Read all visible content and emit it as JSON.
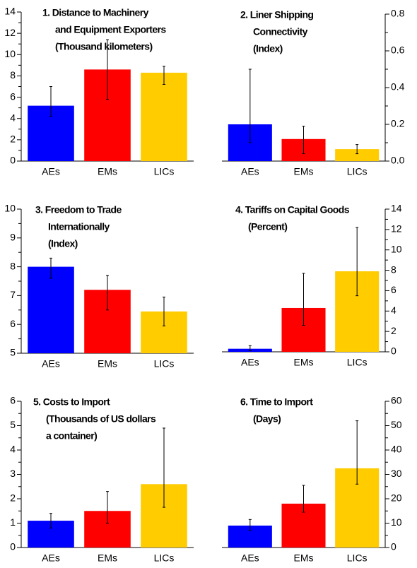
{
  "chart_data": [
    {
      "type": "bar",
      "title": [
        "1. Distance to Machinery",
        "and Equipment Exporters",
        "(Thousand kilometers)"
      ],
      "categories": [
        "AEs",
        "EMs",
        "LICs"
      ],
      "values": [
        5.2,
        8.6,
        8.3
      ],
      "error_low": [
        4.2,
        5.8,
        7.2
      ],
      "error_high": [
        7.0,
        11.4,
        8.9
      ],
      "colors": [
        "#0000ff",
        "#ff0000",
        "#ffcc00"
      ],
      "ylim": [
        0,
        14
      ],
      "yticks": [
        0,
        2,
        4,
        6,
        8,
        10,
        12,
        14
      ],
      "minor_yticks": [
        1,
        3,
        5,
        7,
        9,
        11,
        13
      ],
      "y_axis_side": "left"
    },
    {
      "type": "bar",
      "title": [
        "2. Liner Shipping",
        "Connectivity",
        "(Index)"
      ],
      "categories": [
        "AEs",
        "EMs",
        "LICs"
      ],
      "values": [
        0.2,
        0.12,
        0.065
      ],
      "error_low": [
        0.1,
        0.04,
        0.04
      ],
      "error_high": [
        0.5,
        0.19,
        0.09
      ],
      "colors": [
        "#0000ff",
        "#ff0000",
        "#ffcc00"
      ],
      "ylim": [
        0,
        0.8
      ],
      "yticks": [
        {
          "value": 0,
          "label": "0.0"
        },
        0.2,
        0.4,
        0.6,
        0.8
      ],
      "minor_yticks": [
        0.1,
        0.3,
        0.5,
        0.7
      ],
      "y_axis_side": "right"
    },
    {
      "type": "bar",
      "title": [
        "3. Freedom to Trade",
        "Internationally",
        "(Index)"
      ],
      "categories": [
        "AEs",
        "EMs",
        "LICs"
      ],
      "values": [
        8.0,
        7.2,
        6.45
      ],
      "error_low": [
        7.6,
        6.5,
        5.95
      ],
      "error_high": [
        8.3,
        7.7,
        6.95
      ],
      "colors": [
        "#0000ff",
        "#ff0000",
        "#ffcc00"
      ],
      "ylim": [
        5,
        10
      ],
      "yticks": [
        5,
        6,
        7,
        8,
        9,
        10
      ],
      "minor_yticks": [
        5.5,
        6.5,
        7.5,
        8.5,
        9.5
      ],
      "y_axis_side": "left"
    },
    {
      "type": "bar",
      "title": [
        "4. Tariffs on Capital Goods",
        "(Percent)"
      ],
      "categories": [
        "AEs",
        "EMs",
        "LICs"
      ],
      "values": [
        0.3,
        4.3,
        7.9
      ],
      "error_low": [
        0.1,
        2.6,
        5.5
      ],
      "error_high": [
        0.6,
        7.7,
        12.2
      ],
      "colors": [
        "#0000ff",
        "#ff0000",
        "#ffcc00"
      ],
      "ylim": [
        0,
        14
      ],
      "yticks": [
        0,
        2,
        4,
        6,
        8,
        10,
        12,
        14
      ],
      "minor_yticks": [
        1,
        3,
        5,
        7,
        9,
        11,
        13
      ],
      "y_axis_side": "right"
    },
    {
      "type": "bar",
      "title": [
        "5. Costs to Import",
        "(Thousands of US dollars",
        "a container)"
      ],
      "categories": [
        "AEs",
        "EMs",
        "LICs"
      ],
      "values": [
        1.1,
        1.5,
        2.6
      ],
      "error_low": [
        0.8,
        1.0,
        1.65
      ],
      "error_high": [
        1.4,
        2.3,
        4.9
      ],
      "colors": [
        "#0000ff",
        "#ff0000",
        "#ffcc00"
      ],
      "ylim": [
        0,
        6
      ],
      "yticks": [
        0,
        1,
        2,
        3,
        4,
        5,
        6
      ],
      "minor_yticks": [
        0.5,
        1.5,
        2.5,
        3.5,
        4.5,
        5.5
      ],
      "y_axis_side": "left"
    },
    {
      "type": "bar",
      "title": [
        "6. Time to Import",
        "(Days)"
      ],
      "categories": [
        "AEs",
        "EMs",
        "LICs"
      ],
      "values": [
        9,
        18,
        32.5
      ],
      "error_low": [
        7,
        14.5,
        26
      ],
      "error_high": [
        11.5,
        25.5,
        52
      ],
      "colors": [
        "#0000ff",
        "#ff0000",
        "#ffcc00"
      ],
      "ylim": [
        0,
        60
      ],
      "yticks": [
        0,
        10,
        20,
        30,
        40,
        50,
        60
      ],
      "minor_yticks": [
        5,
        15,
        25,
        35,
        45,
        55
      ],
      "y_axis_side": "right"
    }
  ]
}
